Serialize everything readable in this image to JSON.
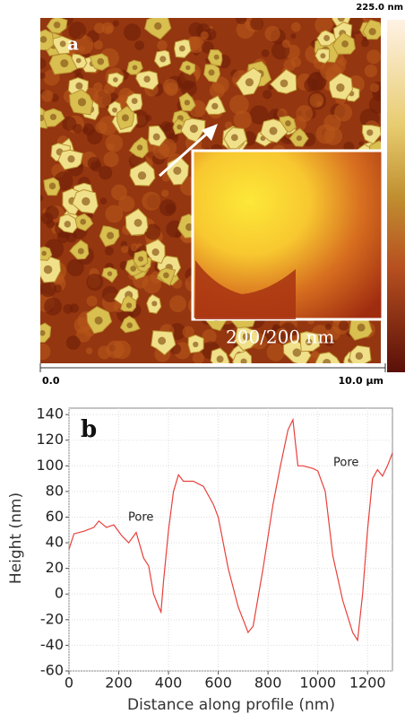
{
  "chart_data": [
    {
      "type": "image",
      "panel_label": "a",
      "colorbar_label": "225.0 nm",
      "scale_labels": [
        "0.0",
        "10.0 µm"
      ],
      "inset_label": "200/200 nm"
    },
    {
      "type": "line",
      "panel_label": "b",
      "x_label": "Distance along profile (nm)",
      "y_label": "Height (nm)",
      "annotations": [
        "Pore",
        "Pore"
      ],
      "color": "#e8403a",
      "grid": true,
      "x": [
        0,
        20,
        60,
        100,
        120,
        150,
        180,
        210,
        240,
        270,
        300,
        320,
        340,
        360,
        370,
        380,
        400,
        420,
        440,
        460,
        500,
        540,
        580,
        600,
        640,
        680,
        720,
        740,
        780,
        820,
        850,
        880,
        900,
        920,
        940,
        980,
        1000,
        1030,
        1060,
        1100,
        1140,
        1160,
        1180,
        1200,
        1220,
        1240,
        1260,
        1280,
        1300
      ],
      "values": [
        35,
        47,
        49,
        52,
        57,
        52,
        54,
        46,
        40,
        48,
        28,
        22,
        0,
        -10,
        -14,
        10,
        50,
        80,
        93,
        88,
        88,
        84,
        70,
        60,
        20,
        -10,
        -30,
        -25,
        20,
        70,
        100,
        128,
        136,
        100,
        100,
        98,
        96,
        80,
        30,
        -5,
        -30,
        -36,
        0,
        50,
        90,
        97,
        92,
        100,
        110
      ],
      "xlim": [
        0,
        1300
      ],
      "ylim": [
        -60,
        145
      ],
      "xticks": [
        0,
        200,
        400,
        600,
        800,
        1000,
        1200
      ],
      "yticks": [
        -60,
        -40,
        -20,
        0,
        20,
        40,
        60,
        80,
        100,
        120,
        140
      ]
    }
  ]
}
